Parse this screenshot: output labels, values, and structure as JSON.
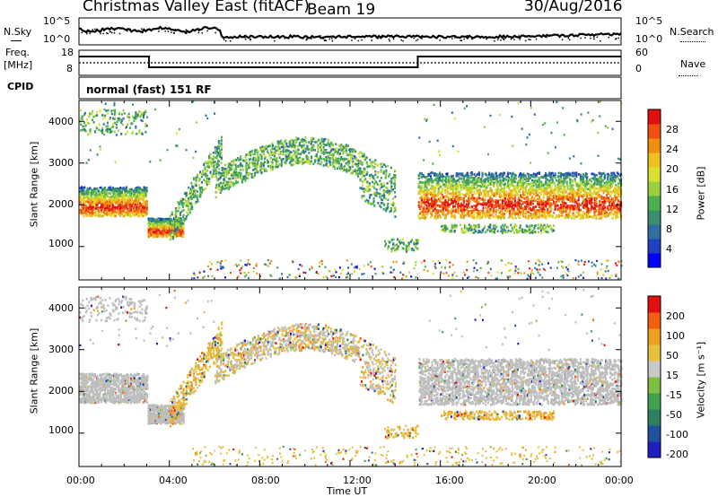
{
  "header": {
    "title": "Christmas Valley East (fitACF)",
    "beam": "Beam 19",
    "date": "30/Aug/2016"
  },
  "nsky_panel": {
    "left_label": "N.Sky",
    "right_label": "N.Search",
    "left_ticks": [
      "10^5",
      "10^0"
    ],
    "right_ticks": [
      "10^5",
      "10^0"
    ]
  },
  "freq_panel": {
    "left_label_1": "Freq.",
    "left_label_2": "[MHz]",
    "right_label": "Nave",
    "left_ticks": [
      "18",
      "8"
    ],
    "right_ticks": [
      "60",
      "0"
    ]
  },
  "cpid_panel": {
    "label": "CPID",
    "mode": "normal (fast) 151 RF"
  },
  "chart_data": [
    {
      "type": "heatmap",
      "name": "power",
      "ylabel": "Slant Range [km]",
      "yticks": [
        "4000",
        "3000",
        "2000",
        "1000"
      ],
      "ylim": [
        200,
        4500
      ],
      "xlabel": "",
      "colorbar": {
        "label": "Power [dB]",
        "ticks": [
          "28",
          "24",
          "20",
          "16",
          "12",
          "8",
          "4"
        ]
      },
      "bands": [
        {
          "t0": 0.0,
          "t1": 3.0,
          "r0": 1750,
          "r1": 2450,
          "kind": "strong"
        },
        {
          "t0": 0.0,
          "t1": 3.0,
          "r0": 3700,
          "r1": 4300,
          "kind": "weak"
        },
        {
          "t0": 3.0,
          "t1": 4.6,
          "r0": 1250,
          "r1": 1700,
          "kind": "strong"
        },
        {
          "t0": 4.0,
          "t1": 6.3,
          "r0": 1500,
          "r1": 3700,
          "kind": "rising"
        },
        {
          "t0": 6.0,
          "t1": 14.0,
          "r0": 2300,
          "r1": 3400,
          "kind": "arc"
        },
        {
          "t0": 13.5,
          "t1": 15.0,
          "r0": 900,
          "r1": 1200,
          "kind": "weak"
        },
        {
          "t0": 15.0,
          "t1": 24.0,
          "r0": 1700,
          "r1": 2800,
          "kind": "strong"
        },
        {
          "t0": 16.0,
          "t1": 21.0,
          "r0": 1350,
          "r1": 1550,
          "kind": "weak"
        }
      ]
    },
    {
      "type": "heatmap",
      "name": "velocity",
      "ylabel": "Slant Range [km]",
      "yticks": [
        "4000",
        "3000",
        "2000",
        "1000"
      ],
      "ylim": [
        200,
        4500
      ],
      "xlabel": "Time UT",
      "xticks": [
        "00:00",
        "04:00",
        "08:00",
        "12:00",
        "16:00",
        "20:00",
        "00:00"
      ],
      "xlim": [
        0,
        24
      ],
      "colorbar": {
        "label": "Velocity [m s⁻¹]",
        "ticks": [
          "200",
          "100",
          "50",
          "15",
          "-15",
          "-50",
          "-100",
          "-200"
        ]
      }
    }
  ],
  "colors": {
    "ground_scatter": "#bdbdbd",
    "power_scale": [
      "#0000ff",
      "#2040c0",
      "#2f6fa0",
      "#3a8f70",
      "#4cb050",
      "#9ad040",
      "#d8e030",
      "#f0c020",
      "#f09010",
      "#f05010",
      "#e01010"
    ],
    "velocity_scale": [
      "#2020c0",
      "#2050a0",
      "#2e8060",
      "#40a050",
      "#80c040",
      "#c8c8c8",
      "#e8c040",
      "#f0a020",
      "#f06010",
      "#e01010"
    ]
  }
}
